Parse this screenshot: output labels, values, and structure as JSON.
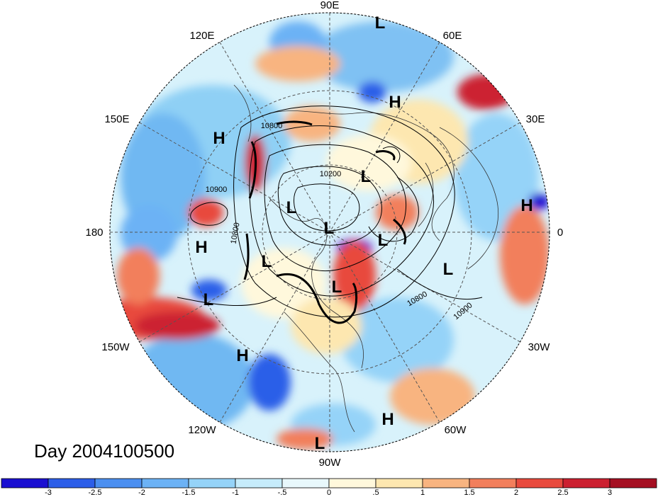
{
  "title": "Day 2004100500",
  "longitude_labels": [
    "90E",
    "60E",
    "30E",
    "0",
    "30W",
    "60W",
    "90W",
    "120W",
    "150W",
    "180",
    "150E",
    "120E"
  ],
  "pressure_systems": [
    {
      "type": "L"
    },
    {
      "type": "H"
    },
    {
      "type": "H"
    },
    {
      "type": "L"
    },
    {
      "type": "H"
    },
    {
      "type": "L"
    },
    {
      "type": "L"
    },
    {
      "type": "L"
    },
    {
      "type": "H"
    },
    {
      "type": "L"
    },
    {
      "type": "L"
    },
    {
      "type": "L"
    },
    {
      "type": "L"
    },
    {
      "type": "H"
    },
    {
      "type": "H"
    },
    {
      "type": "L"
    }
  ],
  "contour_labels": [
    "10800",
    "10200",
    "10900",
    "10800",
    "10800",
    "10900"
  ],
  "colorbar": {
    "colors": [
      "#1a0fd1",
      "#2c5ee8",
      "#4b8ff0",
      "#6cb2f5",
      "#95d3f8",
      "#c6ecfb",
      "#e8f8fc",
      "#fff8dc",
      "#fde7b0",
      "#f8b480",
      "#f27f5c",
      "#e84a3d",
      "#cc2030",
      "#a50f22"
    ],
    "ticks": [
      "-3",
      "-2.5",
      "-2",
      "-1.5",
      "-1",
      "-.5",
      "0",
      ".5",
      "1",
      "1.5",
      "2",
      "2.5",
      "3"
    ]
  }
}
